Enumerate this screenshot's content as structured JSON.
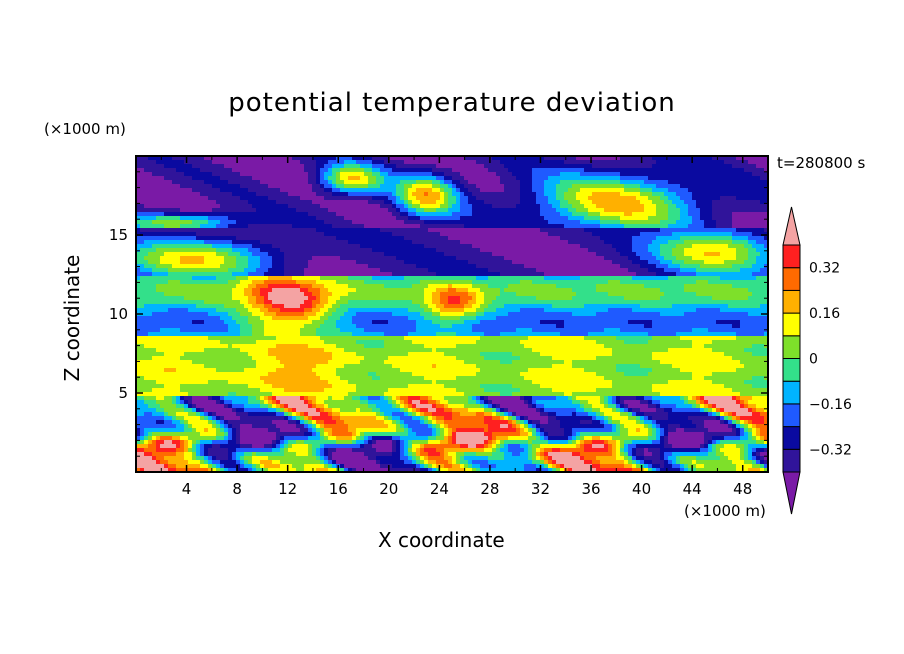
{
  "chart_data": {
    "type": "heatmap",
    "title": "potential temperature deviation",
    "xlabel": "X coordinate",
    "ylabel": "Z coordinate",
    "x_unit": "(×1000 m)",
    "y_unit": "(×1000 m)",
    "time_label": "t=280800 s",
    "xlim": [
      0,
      50
    ],
    "ylim": [
      0,
      20
    ],
    "x_ticks": [
      4,
      8,
      12,
      16,
      20,
      24,
      28,
      32,
      36,
      40,
      44,
      48
    ],
    "y_ticks": [
      5,
      10,
      15
    ],
    "colorbar": {
      "levels": [
        -0.4,
        -0.32,
        -0.24,
        -0.16,
        -0.08,
        0,
        0.08,
        0.16,
        0.24,
        0.32,
        0.4
      ],
      "tick_labels": [
        "0.32",
        "0.16",
        "0",
        "−0.16",
        "−0.32"
      ],
      "tick_values": [
        0.32,
        0.16,
        0,
        -0.16,
        -0.32
      ],
      "colors": [
        "#7a1aa6",
        "#30149a",
        "#0a0aa0",
        "#1f5aff",
        "#00b4ff",
        "#33e08a",
        "#7ee02a",
        "#ffff00",
        "#ffb000",
        "#ff6a00",
        "#ff2020",
        "#f4a3a3"
      ]
    },
    "layers": [
      {
        "z": [
          0,
          4.7
        ],
        "description_key": "turbulent boundary layer",
        "mean": 0.0
      },
      {
        "z": [
          4.7,
          8.5
        ],
        "mean": 0.06
      },
      {
        "z": [
          8.5,
          12.5
        ],
        "mean": -0.16
      },
      {
        "z": [
          12.5,
          15.5
        ],
        "mean": -0.36
      },
      {
        "z": [
          15.5,
          20
        ],
        "mean": -0.38
      }
    ]
  }
}
